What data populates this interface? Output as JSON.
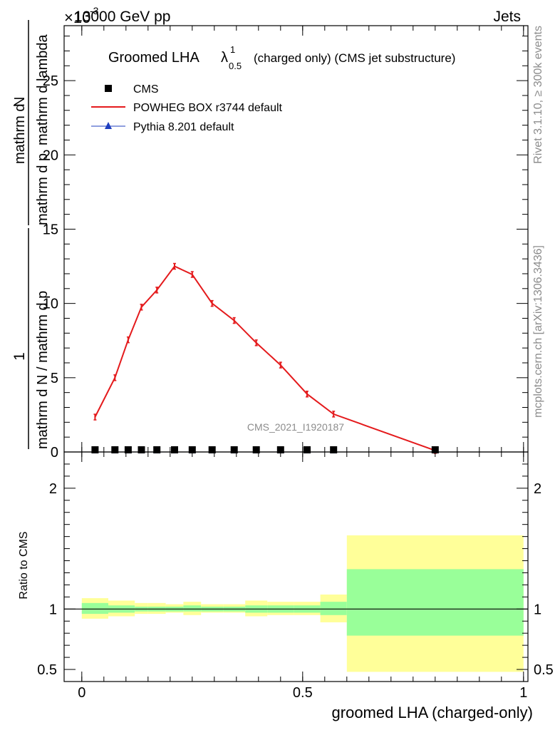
{
  "header": {
    "energy": "13000 GeV pp",
    "process": "Jets",
    "exponent": "×10",
    "exponent_power": "-3"
  },
  "side_labels": {
    "rivet": "Rivet 3.1.10, ≥ 300k events",
    "mcplots": "mcplots.cern.ch [arXiv:1306.3436]"
  },
  "chart_data": [
    {
      "type": "line",
      "title": "Groomed LHA",
      "title_symbol": "λ",
      "title_sup": "1",
      "title_sub": "0.5",
      "title_suffix": "(charged only) (CMS jet substructure)",
      "watermark": "CMS_2021_I1920187",
      "ylabel_numerator": "1",
      "ylabel_denominator": "mathrm d N / mathrm d p",
      "ylabel_denominator_sub": "T",
      "ylabel_numerator_part2": "mathrm d",
      "ylabel_numerator_part2_sup": "2",
      "ylabel_numerator_part2_rest": "N",
      "ylabel_denominator_part2": "mathrm d p",
      "ylabel_denominator_part2_sub": "T",
      "ylabel_denominator_part2_rest": "mathrm d lambda",
      "ylim": [
        0,
        28.7
      ],
      "xlim": [
        -0.04,
        1.01
      ],
      "yticks": [
        "0",
        "5",
        "10",
        "15",
        "20",
        "25"
      ],
      "yticks_values": [
        0,
        5,
        10,
        15,
        20,
        25
      ],
      "legend_position": "top-left",
      "series": [
        {
          "name": "CMS",
          "marker": "square",
          "color": "#000000",
          "x": [
            0.03,
            0.075,
            0.105,
            0.135,
            0.17,
            0.21,
            0.25,
            0.295,
            0.345,
            0.395,
            0.45,
            0.51,
            0.57,
            0.8
          ],
          "y": [
            0.05,
            0.05,
            0.05,
            0.05,
            0.05,
            0.05,
            0.05,
            0.05,
            0.05,
            0.05,
            0.05,
            0.05,
            0.05,
            0.05
          ]
        },
        {
          "name": "POWHEG BOX r3744 default",
          "color": "#e41a1c",
          "x": [
            0.03,
            0.075,
            0.105,
            0.135,
            0.17,
            0.21,
            0.25,
            0.295,
            0.345,
            0.395,
            0.45,
            0.51,
            0.57,
            0.8
          ],
          "y": [
            2.35,
            5.0,
            7.55,
            9.75,
            10.9,
            12.5,
            11.95,
            10.0,
            8.85,
            7.35,
            5.85,
            3.9,
            2.55,
            0.1
          ]
        },
        {
          "name": "Pythia 8.201 default",
          "color": "#1f3fbf",
          "marker": "triangle",
          "x": [
            0.03,
            0.075,
            0.105,
            0.135,
            0.17,
            0.21,
            0.25,
            0.295,
            0.345,
            0.395,
            0.45,
            0.51,
            0.57,
            0.8
          ],
          "y": [
            0.05,
            0.05,
            0.05,
            0.05,
            0.05,
            0.05,
            0.05,
            0.05,
            0.05,
            0.05,
            0.05,
            0.05,
            0.05,
            0.05
          ]
        }
      ]
    },
    {
      "type": "area",
      "ylabel": "Ratio to CMS",
      "xlabel": "groomed LHA (charged-only)",
      "xlim": [
        -0.04,
        1.01
      ],
      "ylim": [
        0.4,
        2.3
      ],
      "xticks": [
        "0",
        "0.5",
        "1"
      ],
      "xticks_values": [
        0,
        0.5,
        1
      ],
      "yticks": [
        "0.5",
        "1",
        "2"
      ],
      "yticks_values": [
        0.5,
        1,
        2
      ],
      "reference_line": 1,
      "bands": {
        "inner_color": "#99ff99",
        "outer_color": "#ffff99",
        "bins": [
          {
            "x0": 0.0,
            "x1": 0.06,
            "inner": [
              0.96,
              1.05
            ],
            "outer": [
              0.92,
              1.09
            ]
          },
          {
            "x0": 0.06,
            "x1": 0.12,
            "inner": [
              0.97,
              1.03
            ],
            "outer": [
              0.94,
              1.07
            ]
          },
          {
            "x0": 0.12,
            "x1": 0.15,
            "inner": [
              0.98,
              1.02
            ],
            "outer": [
              0.96,
              1.05
            ]
          },
          {
            "x0": 0.15,
            "x1": 0.19,
            "inner": [
              0.98,
              1.02
            ],
            "outer": [
              0.96,
              1.05
            ]
          },
          {
            "x0": 0.19,
            "x1": 0.23,
            "inner": [
              0.98,
              1.02
            ],
            "outer": [
              0.97,
              1.04
            ]
          },
          {
            "x0": 0.23,
            "x1": 0.27,
            "inner": [
              0.98,
              1.03
            ],
            "outer": [
              0.95,
              1.06
            ]
          },
          {
            "x0": 0.27,
            "x1": 0.32,
            "inner": [
              0.98,
              1.02
            ],
            "outer": [
              0.97,
              1.04
            ]
          },
          {
            "x0": 0.32,
            "x1": 0.37,
            "inner": [
              0.98,
              1.02
            ],
            "outer": [
              0.97,
              1.04
            ]
          },
          {
            "x0": 0.37,
            "x1": 0.42,
            "inner": [
              0.97,
              1.03
            ],
            "outer": [
              0.94,
              1.07
            ]
          },
          {
            "x0": 0.42,
            "x1": 0.48,
            "inner": [
              0.97,
              1.03
            ],
            "outer": [
              0.95,
              1.06
            ]
          },
          {
            "x0": 0.48,
            "x1": 0.54,
            "inner": [
              0.97,
              1.03
            ],
            "outer": [
              0.95,
              1.06
            ]
          },
          {
            "x0": 0.54,
            "x1": 0.6,
            "inner": [
              0.95,
              1.06
            ],
            "outer": [
              0.89,
              1.12
            ]
          },
          {
            "x0": 0.6,
            "x1": 1.0,
            "inner": [
              0.78,
              1.33
            ],
            "outer": [
              0.48,
              1.61
            ]
          }
        ]
      }
    }
  ]
}
